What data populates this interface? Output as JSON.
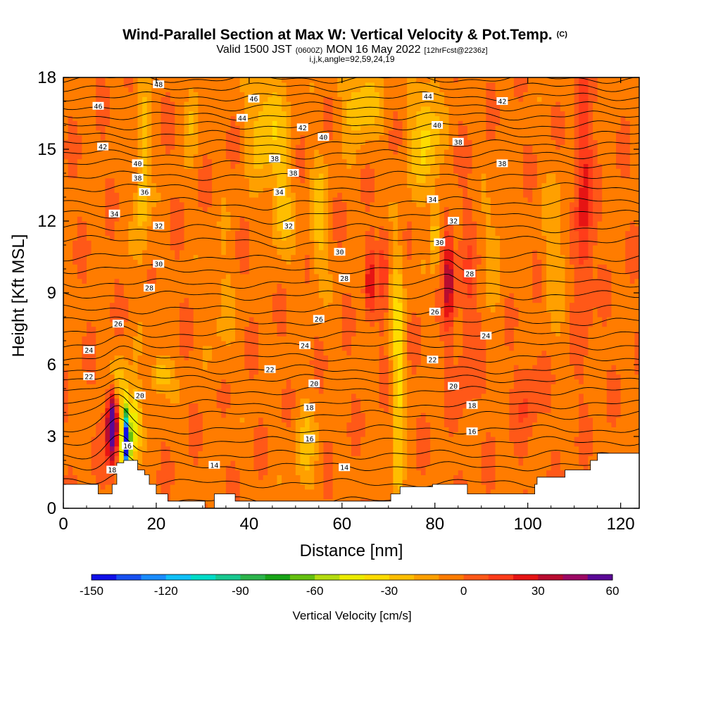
{
  "chart_data": {
    "type": "heatmap",
    "title": {
      "main": "Wind-Parallel Section at Max W: Vertical Velocity & Pot.Temp.",
      "copyright": "(C)",
      "valid_prefix": "Valid 1500 JST",
      "valid_utc": "(0600Z)",
      "valid_suffix": "MON 16 May 2022",
      "forecast": "[12hrFcst@2236z]",
      "grid_info": "i,j,k,angle=92,59,24,19"
    },
    "xlabel": "Distance [nm]",
    "ylabel": "Height [Kft MSL]",
    "xlim": [
      0,
      124
    ],
    "ylim": [
      0,
      18
    ],
    "x_ticks": [
      0,
      20,
      40,
      60,
      80,
      100,
      120
    ],
    "y_ticks": [
      0,
      3,
      6,
      9,
      12,
      15,
      18
    ],
    "colorbar": {
      "label": "Vertical Velocity [cm/s]",
      "range": [
        -150,
        60
      ],
      "step": 10,
      "tick_values": [
        -150,
        -120,
        -90,
        -60,
        -30,
        0,
        30,
        60
      ],
      "colors": [
        "#1010e8",
        "#1850f0",
        "#1a8cff",
        "#10c0f8",
        "#00dcc8",
        "#18c890",
        "#2cb44c",
        "#18a418",
        "#64c010",
        "#b4dc10",
        "#ecec00",
        "#ffdc00",
        "#ffbe00",
        "#ffa000",
        "#ff7c00",
        "#ff5818",
        "#ff3c1a",
        "#e61414",
        "#b80c30",
        "#9c0864",
        "#5a0896"
      ]
    },
    "color_field": {
      "background_w": -3,
      "features": [
        {
          "x": 10.5,
          "y": 3.5,
          "sx": 1.2,
          "sy": 1.6,
          "w": 75
        },
        {
          "x": 13.5,
          "y": 2.8,
          "sx": 0.9,
          "sy": 1.4,
          "w": -160
        },
        {
          "x": 15.5,
          "y": 3.5,
          "sx": 1.1,
          "sy": 1.5,
          "w": -45
        },
        {
          "x": 12,
          "y": 5.2,
          "sx": 2.2,
          "sy": 1.2,
          "w": -25
        },
        {
          "x": 21,
          "y": 5.6,
          "sx": 2.2,
          "sy": 0.8,
          "w": -30
        },
        {
          "x": 17,
          "y": 14,
          "sx": 1.6,
          "sy": 4,
          "w": -25
        },
        {
          "x": 28,
          "y": 16.5,
          "sx": 1.5,
          "sy": 1.6,
          "w": -20
        },
        {
          "x": 44,
          "y": 16,
          "sx": 4,
          "sy": 2.3,
          "w": -28
        },
        {
          "x": 47,
          "y": 12.5,
          "sx": 2.2,
          "sy": 2,
          "w": -22
        },
        {
          "x": 55,
          "y": 12,
          "sx": 2,
          "sy": 2.5,
          "w": -22
        },
        {
          "x": 64,
          "y": 17,
          "sx": 4,
          "sy": 1.8,
          "w": -25
        },
        {
          "x": 72,
          "y": 6.5,
          "sx": 1.4,
          "sy": 5,
          "w": -30
        },
        {
          "x": 72,
          "y": 1.5,
          "sx": 1.2,
          "sy": 1.2,
          "w": -22
        },
        {
          "x": 78,
          "y": 15.5,
          "sx": 3,
          "sy": 2.5,
          "w": -30
        },
        {
          "x": 52,
          "y": 2.5,
          "sx": 2.5,
          "sy": 2,
          "w": -18
        },
        {
          "x": 83,
          "y": 9.7,
          "sx": 1.1,
          "sy": 2.2,
          "w": 42
        },
        {
          "x": 80,
          "y": 11.5,
          "sx": 0.8,
          "sy": 1.5,
          "w": -28
        },
        {
          "x": 66,
          "y": 9.5,
          "sx": 1.1,
          "sy": 1.5,
          "w": 28
        },
        {
          "x": 69,
          "y": 10,
          "sx": 0.9,
          "sy": 2,
          "w": 20
        },
        {
          "x": 87,
          "y": 8,
          "sx": 2,
          "sy": 4,
          "w": 14
        },
        {
          "x": 112,
          "y": 13,
          "sx": 1.8,
          "sy": 5,
          "w": 28
        },
        {
          "x": 106,
          "y": 11,
          "sx": 2.5,
          "sy": 3,
          "w": -16
        },
        {
          "x": 93,
          "y": 11,
          "sx": 2.5,
          "sy": 2.5,
          "w": -12
        },
        {
          "x": 34,
          "y": 8.5,
          "sx": 2.5,
          "sy": 3,
          "w": -10
        },
        {
          "x": 100,
          "y": 4.5,
          "sx": 2.5,
          "sy": 2,
          "w": 12
        }
      ]
    },
    "isentropes": [
      {
        "theta": 12,
        "base_y": 0.3
      },
      {
        "theta": 13,
        "base_y": 1.05
      },
      {
        "theta": 14,
        "base_y": 1.75
      },
      {
        "theta": 15,
        "base_y": 2.25
      },
      {
        "theta": 16,
        "base_y": 2.8
      },
      {
        "theta": 17,
        "base_y": 3.3
      },
      {
        "theta": 18,
        "base_y": 3.9
      },
      {
        "theta": 19,
        "base_y": 4.35
      },
      {
        "theta": 20,
        "base_y": 4.9
      },
      {
        "theta": 21,
        "base_y": 5.4
      },
      {
        "theta": 22,
        "base_y": 5.8
      },
      {
        "theta": 23,
        "base_y": 6.3
      },
      {
        "theta": 24,
        "base_y": 6.8
      },
      {
        "theta": 25,
        "base_y": 7.3
      },
      {
        "theta": 26,
        "base_y": 7.8
      },
      {
        "theta": 27,
        "base_y": 8.3
      },
      {
        "theta": 28,
        "base_y": 8.9
      },
      {
        "theta": 29,
        "base_y": 9.4
      },
      {
        "theta": 30,
        "base_y": 10.0
      },
      {
        "theta": 31,
        "base_y": 10.5
      },
      {
        "theta": 32,
        "base_y": 11.2
      },
      {
        "theta": 33,
        "base_y": 11.7
      },
      {
        "theta": 34,
        "base_y": 12.3
      },
      {
        "theta": 35,
        "base_y": 12.8
      },
      {
        "theta": 36,
        "base_y": 13.4
      },
      {
        "theta": 37,
        "base_y": 13.9
      },
      {
        "theta": 38,
        "base_y": 14.4
      },
      {
        "theta": 39,
        "base_y": 14.8
      },
      {
        "theta": 40,
        "base_y": 15.2
      },
      {
        "theta": 41,
        "base_y": 15.6
      },
      {
        "theta": 42,
        "base_y": 16.0
      },
      {
        "theta": 43,
        "base_y": 16.4
      },
      {
        "theta": 44,
        "base_y": 16.8
      },
      {
        "theta": 45,
        "base_y": 17.2
      },
      {
        "theta": 46,
        "base_y": 17.6
      },
      {
        "theta": 47,
        "base_y": 17.95
      }
    ],
    "isentrope_labels": [
      {
        "text": "48",
        "x": 20.5,
        "y": 17.7
      },
      {
        "text": "46",
        "x": 7.5,
        "y": 16.8
      },
      {
        "text": "46",
        "x": 41,
        "y": 17.1
      },
      {
        "text": "44",
        "x": 38.5,
        "y": 16.3
      },
      {
        "text": "44",
        "x": 78.5,
        "y": 17.2
      },
      {
        "text": "42",
        "x": 94.5,
        "y": 17.0
      },
      {
        "text": "42",
        "x": 8.5,
        "y": 15.1
      },
      {
        "text": "42",
        "x": 51.5,
        "y": 15.9
      },
      {
        "text": "40",
        "x": 56,
        "y": 15.5
      },
      {
        "text": "40",
        "x": 80.5,
        "y": 16.0
      },
      {
        "text": "40",
        "x": 16,
        "y": 14.4
      },
      {
        "text": "38",
        "x": 16,
        "y": 13.8
      },
      {
        "text": "38",
        "x": 45.5,
        "y": 14.6
      },
      {
        "text": "38",
        "x": 49.5,
        "y": 14.0
      },
      {
        "text": "38",
        "x": 85,
        "y": 15.3
      },
      {
        "text": "38",
        "x": 94.5,
        "y": 14.4
      },
      {
        "text": "36",
        "x": 17.5,
        "y": 13.2
      },
      {
        "text": "34",
        "x": 11,
        "y": 12.3
      },
      {
        "text": "34",
        "x": 46.5,
        "y": 13.2
      },
      {
        "text": "34",
        "x": 79.5,
        "y": 12.9
      },
      {
        "text": "32",
        "x": 20.5,
        "y": 11.8
      },
      {
        "text": "32",
        "x": 48.5,
        "y": 11.8
      },
      {
        "text": "32",
        "x": 84,
        "y": 12.0
      },
      {
        "text": "30",
        "x": 81,
        "y": 11.1
      },
      {
        "text": "30",
        "x": 59.5,
        "y": 10.7
      },
      {
        "text": "30",
        "x": 20.5,
        "y": 10.2
      },
      {
        "text": "28",
        "x": 60.5,
        "y": 9.6
      },
      {
        "text": "28",
        "x": 87.5,
        "y": 9.8
      },
      {
        "text": "28",
        "x": 18.5,
        "y": 9.2
      },
      {
        "text": "26",
        "x": 11.8,
        "y": 7.7
      },
      {
        "text": "26",
        "x": 55,
        "y": 7.9
      },
      {
        "text": "26",
        "x": 80,
        "y": 8.2
      },
      {
        "text": "24",
        "x": 5.5,
        "y": 6.6
      },
      {
        "text": "24",
        "x": 52,
        "y": 6.8
      },
      {
        "text": "24",
        "x": 91,
        "y": 7.2
      },
      {
        "text": "22",
        "x": 44.5,
        "y": 5.8
      },
      {
        "text": "22",
        "x": 79.5,
        "y": 6.2
      },
      {
        "text": "22",
        "x": 5.5,
        "y": 5.5
      },
      {
        "text": "20",
        "x": 16.5,
        "y": 4.7
      },
      {
        "text": "20",
        "x": 54,
        "y": 5.2
      },
      {
        "text": "20",
        "x": 84,
        "y": 5.1
      },
      {
        "text": "18",
        "x": 53,
        "y": 4.2
      },
      {
        "text": "18",
        "x": 88,
        "y": 4.3
      },
      {
        "text": "16",
        "x": 13.8,
        "y": 2.6
      },
      {
        "text": "16",
        "x": 53,
        "y": 2.9
      },
      {
        "text": "16",
        "x": 88,
        "y": 3.2
      },
      {
        "text": "18",
        "x": 10.5,
        "y": 1.6
      },
      {
        "text": "14",
        "x": 32.5,
        "y": 1.8
      },
      {
        "text": "14",
        "x": 60.5,
        "y": 1.7
      }
    ],
    "terrain": [
      [
        0,
        1.0
      ],
      [
        7.5,
        1.0
      ],
      [
        7.5,
        0.6
      ],
      [
        10.5,
        0.6
      ],
      [
        10.5,
        1.0
      ],
      [
        11.5,
        1.0
      ],
      [
        11.5,
        1.9
      ],
      [
        13,
        1.9
      ],
      [
        13,
        2.0
      ],
      [
        16,
        2.0
      ],
      [
        16,
        1.6
      ],
      [
        17.5,
        1.6
      ],
      [
        17.5,
        1.4
      ],
      [
        18.5,
        1.4
      ],
      [
        18.5,
        1.0
      ],
      [
        20,
        1.0
      ],
      [
        20,
        0.6
      ],
      [
        22.5,
        0.6
      ],
      [
        22.5,
        0.3
      ],
      [
        30.5,
        0.3
      ],
      [
        30.5,
        0
      ],
      [
        32.5,
        0
      ],
      [
        32.5,
        0.6
      ],
      [
        37,
        0.6
      ],
      [
        37,
        0.3
      ],
      [
        70.5,
        0.3
      ],
      [
        70.5,
        0.6
      ],
      [
        72.5,
        0.6
      ],
      [
        72.5,
        0.9
      ],
      [
        79.5,
        0.9
      ],
      [
        79.5,
        1.0
      ],
      [
        87,
        1.0
      ],
      [
        87,
        0.6
      ],
      [
        101.5,
        0.6
      ],
      [
        101.5,
        1.0
      ],
      [
        102,
        1.0
      ],
      [
        102,
        1.3
      ],
      [
        108,
        1.3
      ],
      [
        108,
        1.6
      ],
      [
        113.5,
        1.6
      ],
      [
        113.5,
        2.0
      ],
      [
        115,
        2.0
      ],
      [
        115,
        2.3
      ],
      [
        124,
        2.3
      ]
    ]
  }
}
